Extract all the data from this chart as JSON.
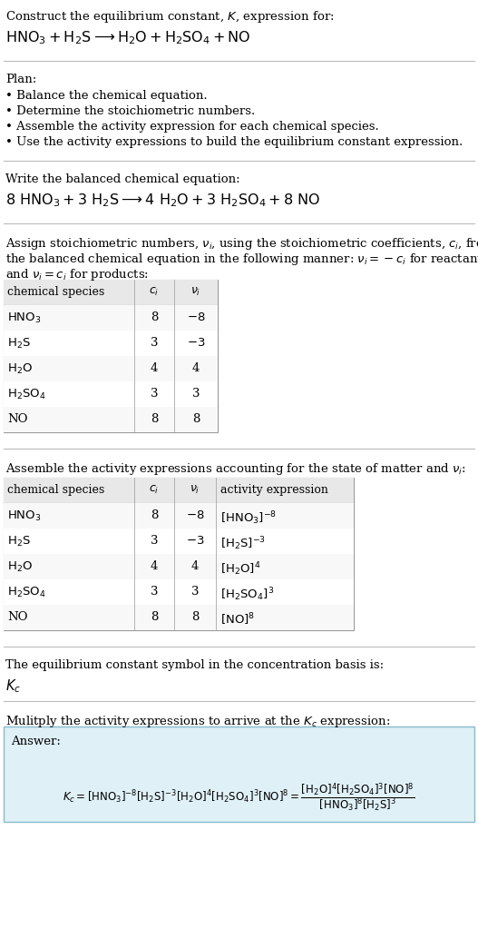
{
  "bg_color": "#ffffff",
  "text_color": "#000000",
  "title_line1": "Construct the equilibrium constant, $K$, expression for:",
  "title_line2": "$\\mathrm{HNO_3 + H_2S \\longrightarrow H_2O + H_2SO_4 + NO}$",
  "plan_header": "Plan:",
  "plan_items": [
    "• Balance the chemical equation.",
    "• Determine the stoichiometric numbers.",
    "• Assemble the activity expression for each chemical species.",
    "• Use the activity expressions to build the equilibrium constant expression."
  ],
  "balanced_header": "Write the balanced chemical equation:",
  "balanced_eq": "$\\mathrm{8\\ HNO_3 + 3\\ H_2S \\longrightarrow 4\\ H_2O + 3\\ H_2SO_4 + 8\\ NO}$",
  "stoich_intro1": "Assign stoichiometric numbers, $\\nu_i$, using the stoichiometric coefficients, $c_i$, from",
  "stoich_intro2": "the balanced chemical equation in the following manner: $\\nu_i = -c_i$ for reactants",
  "stoich_intro3": "and $\\nu_i = c_i$ for products:",
  "table1_headers": [
    "chemical species",
    "$c_i$",
    "$\\nu_i$"
  ],
  "table1_rows": [
    [
      "$\\mathrm{HNO_3}$",
      "8",
      "$-8$"
    ],
    [
      "$\\mathrm{H_2S}$",
      "3",
      "$-3$"
    ],
    [
      "$\\mathrm{H_2O}$",
      "4",
      "4"
    ],
    [
      "$\\mathrm{H_2SO_4}$",
      "3",
      "3"
    ],
    [
      "NO",
      "8",
      "8"
    ]
  ],
  "activity_intro": "Assemble the activity expressions accounting for the state of matter and $\\nu_i$:",
  "table2_headers": [
    "chemical species",
    "$c_i$",
    "$\\nu_i$",
    "activity expression"
  ],
  "table2_rows": [
    [
      "$\\mathrm{HNO_3}$",
      "8",
      "$-8$",
      "$[\\mathrm{HNO_3}]^{-8}$"
    ],
    [
      "$\\mathrm{H_2S}$",
      "3",
      "$-3$",
      "$[\\mathrm{H_2S}]^{-3}$"
    ],
    [
      "$\\mathrm{H_2O}$",
      "4",
      "4",
      "$[\\mathrm{H_2O}]^{4}$"
    ],
    [
      "$\\mathrm{H_2SO_4}$",
      "3",
      "3",
      "$[\\mathrm{H_2SO_4}]^{3}$"
    ],
    [
      "NO",
      "8",
      "8",
      "$[\\mathrm{NO}]^{8}$"
    ]
  ],
  "kc_intro": "The equilibrium constant symbol in the concentration basis is:",
  "kc_symbol": "$K_c$",
  "multiply_header": "Mulitply the activity expressions to arrive at the $K_c$ expression:",
  "answer_label": "Answer:",
  "answer_box_color": "#dff0f7",
  "answer_border_color": "#88bbcc",
  "table_header_bg": "#e8e8e8",
  "table_border_color": "#999999",
  "font_size": 9.5,
  "font_size_large": 11.5
}
